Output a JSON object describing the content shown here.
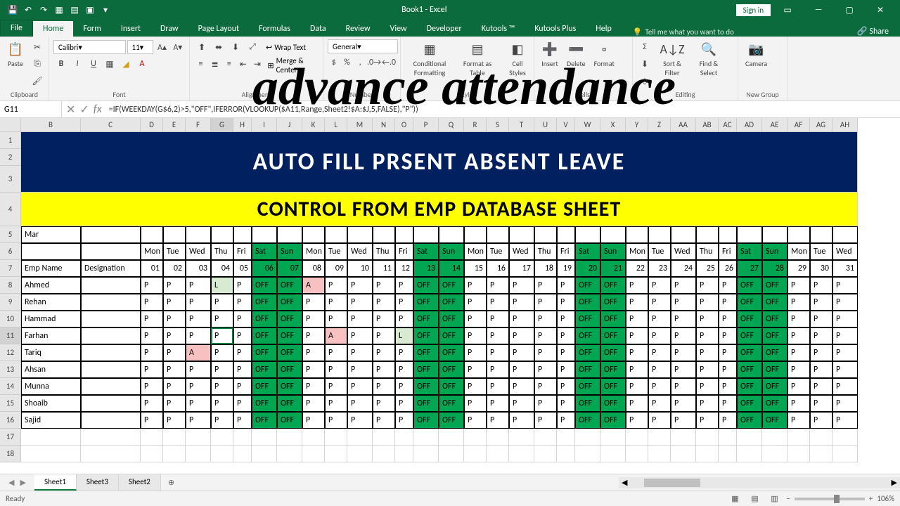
{
  "title": "Book1 - Excel",
  "signin": "Sign in",
  "overlay": "advance attendance",
  "tabs": [
    "File",
    "Home",
    "Form",
    "Insert",
    "Draw",
    "Page Layout",
    "Formulas",
    "Data",
    "Review",
    "View",
    "Developer",
    "Kutools ™",
    "Kutools Plus",
    "Help"
  ],
  "active_tab": "Home",
  "tell_me": "Tell me what you want to do",
  "share": "Share",
  "ribbon": {
    "clipboard": "Clipboard",
    "font": "Font",
    "alignment": "Alignment",
    "number": "Number",
    "styles": "Styles",
    "cells": "Cells",
    "editing": "Editing",
    "newgroup": "New Group",
    "paste": "Paste",
    "font_name": "Calibri",
    "font_size": "11",
    "wrap": "Wrap Text",
    "merge": "Merge & Center",
    "num_fmt": "General",
    "cond": "Conditional Formatting",
    "fmtas": "Format as Table",
    "cellsty": "Cell Styles",
    "insert": "Insert",
    "delete": "Delete",
    "format": "Format",
    "sort": "Sort & Filter",
    "find": "Find & Select",
    "camera": "Camera"
  },
  "name_box": "G11",
  "formula": "=IF(WEEKDAY(G$6,2)>5,\"OFF\",IFERROR(VLOOKUP($A11,Range,Sheet2!$A:$J,5,FALSE),\"P\"))",
  "colors": {
    "excel_green": "#0c6b3d",
    "banner_blue": "#002060",
    "banner_yellow": "#ffff00",
    "off_green": "#00a651",
    "absent_pink": "#f8c1c1",
    "leave_green": "#d9ead3",
    "grid_border": "#d4d4d4"
  },
  "columns": [
    {
      "l": "B",
      "w": 85
    },
    {
      "l": "C",
      "w": 85
    },
    {
      "l": "D",
      "w": 32
    },
    {
      "l": "E",
      "w": 32
    },
    {
      "l": "F",
      "w": 36
    },
    {
      "l": "G",
      "w": 32
    },
    {
      "l": "H",
      "w": 26
    },
    {
      "l": "I",
      "w": 36
    },
    {
      "l": "J",
      "w": 36
    },
    {
      "l": "K",
      "w": 32
    },
    {
      "l": "L",
      "w": 32
    },
    {
      "l": "M",
      "w": 36
    },
    {
      "l": "N",
      "w": 32
    },
    {
      "l": "O",
      "w": 26
    },
    {
      "l": "P",
      "w": 36
    },
    {
      "l": "Q",
      "w": 36
    },
    {
      "l": "R",
      "w": 32
    },
    {
      "l": "S",
      "w": 32
    },
    {
      "l": "T",
      "w": 36
    },
    {
      "l": "U",
      "w": 32
    },
    {
      "l": "V",
      "w": 26
    },
    {
      "l": "W",
      "w": 36
    },
    {
      "l": "X",
      "w": 36
    },
    {
      "l": "Y",
      "w": 32
    },
    {
      "l": "Z",
      "w": 32
    },
    {
      "l": "AA",
      "w": 36
    },
    {
      "l": "AB",
      "w": 32
    },
    {
      "l": "AC",
      "w": 26
    },
    {
      "l": "AD",
      "w": 36
    },
    {
      "l": "AE",
      "w": 36
    },
    {
      "l": "AF",
      "w": 32
    },
    {
      "l": "AG",
      "w": 32
    },
    {
      "l": "AH",
      "w": 36
    }
  ],
  "row_heights": {
    "1": 24,
    "2": 24,
    "3": 38,
    "4": 48,
    "5": 24,
    "6": 24,
    "7": 24,
    "8": 24,
    "9": 24,
    "10": 24,
    "11": 24,
    "12": 24,
    "13": 24,
    "14": 24,
    "15": 24,
    "16": 24,
    "17": 24,
    "18": 24
  },
  "banner1_text": "AUTO FILL  PRSENT ABSENT  LEAVE",
  "banner2_text": "CONTROL FROM EMP DATABASE SHEET",
  "month": "Mar",
  "day_headers": [
    "Mon",
    "Tue",
    "Wed",
    "Thu",
    "Fri",
    "Sat",
    "Sun",
    "Mon",
    "Tue",
    "Wed",
    "Thu",
    "Fri",
    "Sat",
    "Sun",
    "Mon",
    "Tue",
    "Wed",
    "Thu",
    "Fri",
    "Sat",
    "Sun",
    "Mon",
    "Tue",
    "Wed",
    "Thu",
    "Fri",
    "Sat",
    "Sun",
    "Mon",
    "Tue",
    "Wed"
  ],
  "date_headers": [
    "01",
    "02",
    "03",
    "04",
    "05",
    "06",
    "07",
    "08",
    "09",
    "10",
    "11",
    "12",
    "13",
    "14",
    "15",
    "16",
    "17",
    "18",
    "19",
    "20",
    "21",
    "22",
    "23",
    "24",
    "25",
    "26",
    "27",
    "28",
    "29",
    "30",
    "31"
  ],
  "header_b": "Emp Name",
  "header_c": "Designation",
  "weekend_idx": [
    5,
    6,
    12,
    13,
    19,
    20,
    26,
    27
  ],
  "employees": [
    {
      "name": "Ahmed",
      "att": [
        "P",
        "P",
        "P",
        "L",
        "P",
        "OFF",
        "OFF",
        "A",
        "P",
        "P",
        "P",
        "P",
        "OFF",
        "OFF",
        "P",
        "P",
        "P",
        "P",
        "P",
        "OFF",
        "OFF",
        "P",
        "P",
        "P",
        "P",
        "P",
        "OFF",
        "OFF",
        "P",
        "P",
        "P"
      ]
    },
    {
      "name": "Rehan",
      "att": [
        "P",
        "P",
        "P",
        "P",
        "P",
        "OFF",
        "OFF",
        "P",
        "P",
        "P",
        "P",
        "P",
        "OFF",
        "OFF",
        "P",
        "P",
        "P",
        "P",
        "P",
        "OFF",
        "OFF",
        "P",
        "P",
        "P",
        "P",
        "P",
        "OFF",
        "OFF",
        "P",
        "P",
        "P"
      ]
    },
    {
      "name": "Hammad",
      "att": [
        "P",
        "P",
        "P",
        "P",
        "P",
        "OFF",
        "OFF",
        "P",
        "P",
        "P",
        "P",
        "P",
        "OFF",
        "OFF",
        "P",
        "P",
        "P",
        "P",
        "P",
        "OFF",
        "OFF",
        "P",
        "P",
        "P",
        "P",
        "P",
        "OFF",
        "OFF",
        "P",
        "P",
        "P"
      ]
    },
    {
      "name": "Farhan",
      "att": [
        "P",
        "P",
        "P",
        "P",
        "P",
        "OFF",
        "OFF",
        "P",
        "A",
        "P",
        "P",
        "L",
        "OFF",
        "OFF",
        "P",
        "P",
        "P",
        "P",
        "P",
        "OFF",
        "OFF",
        "P",
        "P",
        "P",
        "P",
        "P",
        "OFF",
        "OFF",
        "P",
        "P",
        "P"
      ]
    },
    {
      "name": "Tariq",
      "att": [
        "P",
        "P",
        "A",
        "P",
        "P",
        "OFF",
        "OFF",
        "P",
        "P",
        "P",
        "P",
        "P",
        "OFF",
        "OFF",
        "P",
        "P",
        "P",
        "P",
        "P",
        "OFF",
        "OFF",
        "P",
        "P",
        "P",
        "P",
        "P",
        "OFF",
        "OFF",
        "P",
        "P",
        "P"
      ]
    },
    {
      "name": "Ahsan",
      "att": [
        "P",
        "P",
        "P",
        "P",
        "P",
        "OFF",
        "OFF",
        "P",
        "P",
        "P",
        "P",
        "P",
        "OFF",
        "OFF",
        "P",
        "P",
        "P",
        "P",
        "P",
        "OFF",
        "OFF",
        "P",
        "P",
        "P",
        "P",
        "P",
        "OFF",
        "OFF",
        "P",
        "P",
        "P"
      ]
    },
    {
      "name": "Munna",
      "att": [
        "P",
        "P",
        "P",
        "P",
        "P",
        "OFF",
        "OFF",
        "P",
        "P",
        "P",
        "P",
        "P",
        "OFF",
        "OFF",
        "P",
        "P",
        "P",
        "P",
        "P",
        "OFF",
        "OFF",
        "P",
        "P",
        "P",
        "P",
        "P",
        "OFF",
        "OFF",
        "P",
        "P",
        "P"
      ]
    },
    {
      "name": "Shoaib",
      "att": [
        "P",
        "P",
        "P",
        "P",
        "P",
        "OFF",
        "OFF",
        "P",
        "P",
        "P",
        "P",
        "P",
        "OFF",
        "OFF",
        "P",
        "P",
        "P",
        "P",
        "P",
        "OFF",
        "OFF",
        "P",
        "P",
        "P",
        "P",
        "P",
        "OFF",
        "OFF",
        "P",
        "P",
        "P"
      ]
    },
    {
      "name": "Sajid",
      "att": [
        "P",
        "P",
        "P",
        "P",
        "P",
        "OFF",
        "OFF",
        "P",
        "P",
        "P",
        "P",
        "P",
        "OFF",
        "OFF",
        "P",
        "P",
        "P",
        "P",
        "P",
        "OFF",
        "OFF",
        "P",
        "P",
        "P",
        "P",
        "P",
        "OFF",
        "OFF",
        "P",
        "P",
        "P"
      ]
    }
  ],
  "selected": {
    "row": 11,
    "col": "G"
  },
  "sheets": [
    "Sheet1",
    "Sheet3",
    "Sheet2"
  ],
  "active_sheet": "Sheet1",
  "status": "Ready",
  "zoom": "106%"
}
